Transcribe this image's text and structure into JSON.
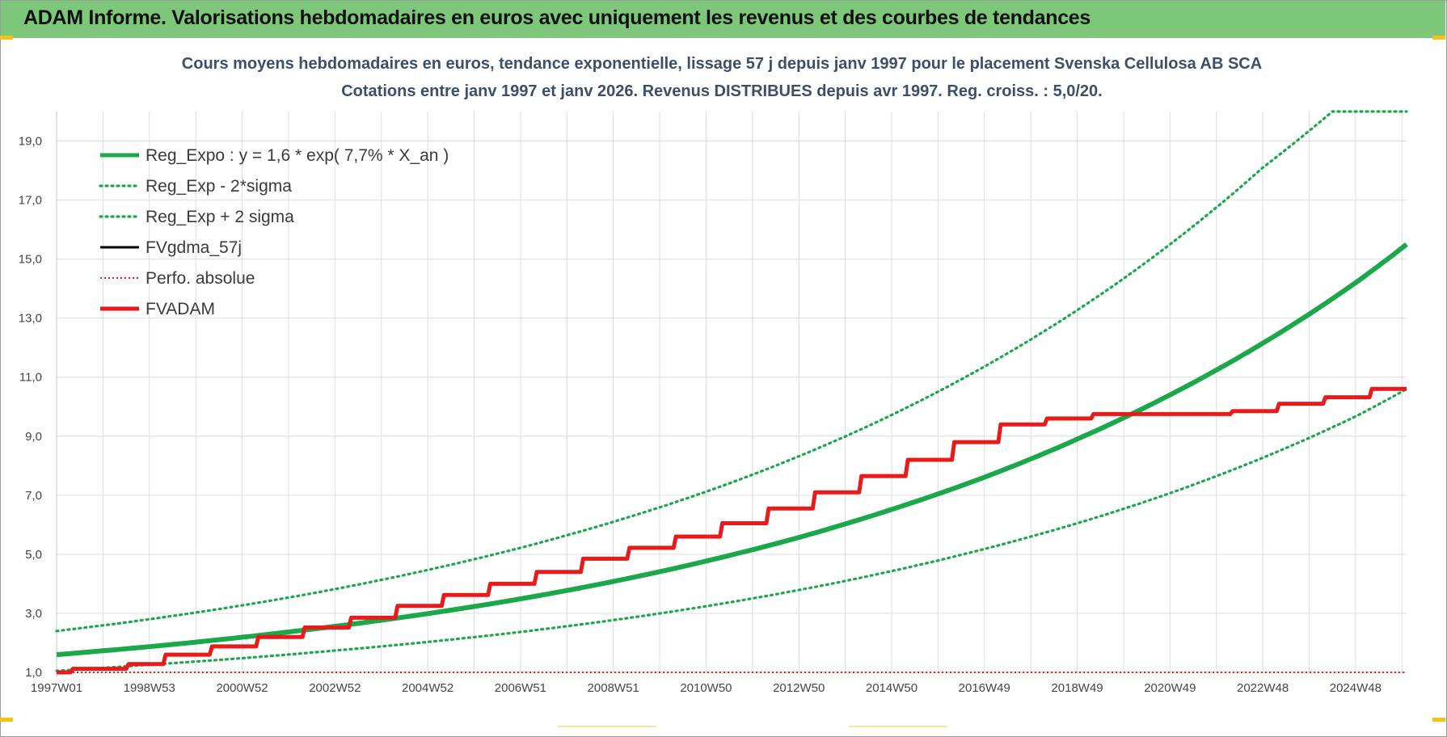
{
  "banner": {
    "title": "ADAM Informe. Valorisations hebdomadaires en euros avec uniquement les revenus et des courbes de tendances"
  },
  "colors": {
    "banner_bg": "#7dc77a",
    "reg_expo": "#1aa84a",
    "sigma": "#1aa84a",
    "fvgdma": "#000000",
    "perfo": "#e0201e",
    "fvadam": "#e81a1a",
    "title_text": "#3d4f68"
  },
  "chart_data": {
    "type": "line",
    "title": "Cours moyens hebdomadaires en euros, tendance exponentielle, lissage 57 j depuis janv 1997 pour le placement Svenska Cellulosa AB SCA",
    "subtitle": "Cotations entre janv 1997 et janv 2026. Revenus DISTRIBUES depuis avr 1997. Reg. croiss. : 5,0/20.",
    "xlabel": "",
    "ylabel": "",
    "xlim": [
      1997.0,
      2026.1
    ],
    "ylim": [
      1.0,
      20.0
    ],
    "yticks": [
      "1,0",
      "3,0",
      "5,0",
      "7,0",
      "9,0",
      "11,0",
      "13,0",
      "15,0",
      "17,0",
      "19,0"
    ],
    "ytick_values": [
      1,
      3,
      5,
      7,
      9,
      11,
      13,
      15,
      17,
      19
    ],
    "xticks": [
      "1997W01",
      "1998W53",
      "2000W52",
      "2002W52",
      "2004W52",
      "2006W51",
      "2008W51",
      "2010W50",
      "2012W50",
      "2014W50",
      "2016W49",
      "2018W49",
      "2020W49",
      "2022W48",
      "2024W48"
    ],
    "xtick_values": [
      1997.0,
      1999.0,
      2001.0,
      2003.0,
      2005.0,
      2007.0,
      2009.0,
      2011.0,
      2013.0,
      2015.0,
      2017.0,
      2019.0,
      2021.0,
      2023.0,
      2025.0
    ],
    "grid": true,
    "legend_position": "top-left",
    "series": [
      {
        "name": "Reg_Expo : y = 1,6 * exp( 7,7% *  X_an )",
        "style": "solid-thick",
        "x": [
          1997.0,
          1999.0,
          2001.0,
          2003.0,
          2005.0,
          2007.0,
          2009.0,
          2011.0,
          2013.0,
          2015.0,
          2017.0,
          2019.0,
          2021.0,
          2023.0,
          2025.0,
          2026.1
        ],
        "y": [
          1.6,
          1.87,
          2.19,
          2.56,
          2.99,
          3.49,
          4.08,
          4.77,
          5.57,
          6.52,
          7.61,
          8.9,
          10.4,
          12.15,
          14.2,
          15.5
        ]
      },
      {
        "name": "Reg_Exp - 2*sigma",
        "style": "dotted",
        "x": [
          1997.0,
          1999.0,
          2001.0,
          2003.0,
          2005.0,
          2007.0,
          2009.0,
          2011.0,
          2013.0,
          2015.0,
          2017.0,
          2019.0,
          2021.0,
          2023.0,
          2025.0,
          2026.1
        ],
        "y": [
          1.05,
          1.26,
          1.48,
          1.74,
          2.03,
          2.37,
          2.77,
          3.24,
          3.79,
          4.43,
          5.18,
          6.05,
          7.07,
          8.27,
          9.67,
          10.6
        ]
      },
      {
        "name": "Reg_Exp + 2 sigma",
        "style": "dotted",
        "x": [
          1997.0,
          1999.0,
          2001.0,
          2003.0,
          2005.0,
          2007.0,
          2009.0,
          2011.0,
          2013.0,
          2015.0,
          2017.0,
          2019.0,
          2021.0,
          2023.0,
          2024.5,
          2026.1
        ],
        "y": [
          2.4,
          2.8,
          3.27,
          3.82,
          4.47,
          5.22,
          6.1,
          7.12,
          8.32,
          9.72,
          11.36,
          13.27,
          15.5,
          18.1,
          20.0,
          20.0
        ]
      },
      {
        "name": "FVgdma_57j",
        "style": "solid-thin",
        "x": [
          1997.0,
          1997.3,
          1997.35,
          1998.5,
          1998.55,
          1999.3,
          1999.35,
          2000.3,
          2000.35,
          2001.3,
          2001.35,
          2002.3,
          2002.35,
          2003.3,
          2003.35,
          2004.3,
          2004.35,
          2005.3,
          2005.35,
          2006.3,
          2006.35,
          2007.3,
          2007.35,
          2008.3,
          2008.35,
          2009.3,
          2009.35,
          2010.3,
          2010.35,
          2011.3,
          2011.35,
          2012.3,
          2012.35,
          2013.3,
          2013.35,
          2014.3,
          2014.35,
          2015.3,
          2015.35,
          2016.3,
          2016.35,
          2017.3,
          2017.35,
          2018.3,
          2018.35,
          2019.3,
          2019.35,
          2022.3,
          2022.35,
          2023.3,
          2023.35,
          2024.3,
          2024.35,
          2025.3,
          2025.35,
          2026.1
        ],
        "y": [
          1.0,
          1.0,
          1.12,
          1.12,
          1.28,
          1.28,
          1.6,
          1.6,
          1.88,
          1.88,
          2.2,
          2.2,
          2.52,
          2.52,
          2.85,
          2.85,
          3.25,
          3.25,
          3.62,
          3.62,
          4.0,
          4.0,
          4.4,
          4.4,
          4.85,
          4.85,
          5.22,
          5.22,
          5.6,
          5.6,
          6.05,
          6.05,
          6.55,
          6.55,
          7.1,
          7.1,
          7.65,
          7.65,
          8.2,
          8.2,
          8.8,
          8.8,
          9.4,
          9.4,
          9.6,
          9.6,
          9.75,
          9.75,
          9.85,
          9.85,
          10.1,
          10.1,
          10.32,
          10.32,
          10.6,
          10.6
        ]
      },
      {
        "name": "Perfo. absolue",
        "style": "dotted-thin",
        "x": [
          1997.0,
          2026.1
        ],
        "y": [
          1.0,
          1.0
        ]
      },
      {
        "name": "FVADAM",
        "style": "solid-thick",
        "x": [
          1997.0,
          1997.3,
          1997.35,
          1998.5,
          1998.55,
          1999.3,
          1999.35,
          2000.3,
          2000.35,
          2001.3,
          2001.35,
          2002.3,
          2002.35,
          2003.3,
          2003.35,
          2004.3,
          2004.35,
          2005.3,
          2005.35,
          2006.3,
          2006.35,
          2007.3,
          2007.35,
          2008.3,
          2008.35,
          2009.3,
          2009.35,
          2010.3,
          2010.35,
          2011.3,
          2011.35,
          2012.3,
          2012.35,
          2013.3,
          2013.35,
          2014.3,
          2014.35,
          2015.3,
          2015.35,
          2016.3,
          2016.35,
          2017.3,
          2017.35,
          2018.3,
          2018.35,
          2019.3,
          2019.35,
          2022.3,
          2022.35,
          2023.3,
          2023.35,
          2024.3,
          2024.35,
          2025.3,
          2025.35,
          2026.1
        ],
        "y": [
          1.0,
          1.0,
          1.12,
          1.12,
          1.28,
          1.28,
          1.6,
          1.6,
          1.88,
          1.88,
          2.2,
          2.2,
          2.52,
          2.52,
          2.85,
          2.85,
          3.25,
          3.25,
          3.62,
          3.62,
          4.0,
          4.0,
          4.4,
          4.4,
          4.85,
          4.85,
          5.22,
          5.22,
          5.6,
          5.6,
          6.05,
          6.05,
          6.55,
          6.55,
          7.1,
          7.1,
          7.65,
          7.65,
          8.2,
          8.2,
          8.8,
          8.8,
          9.4,
          9.4,
          9.6,
          9.6,
          9.75,
          9.75,
          9.85,
          9.85,
          10.1,
          10.1,
          10.32,
          10.32,
          10.6,
          10.6
        ]
      }
    ]
  }
}
